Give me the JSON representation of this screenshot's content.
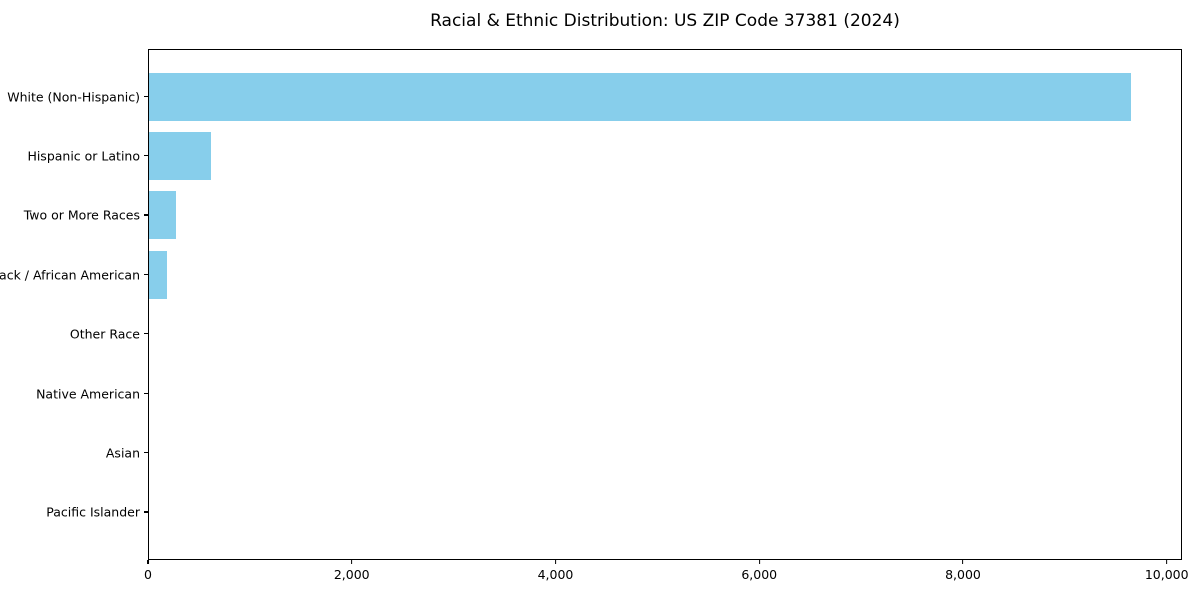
{
  "chart_data": {
    "type": "bar",
    "orientation": "horizontal",
    "title": "Racial & Ethnic Distribution: US ZIP Code 37381 (2024)",
    "categories": [
      "White (Non-Hispanic)",
      "Hispanic or Latino",
      "Two or More Races",
      "Black / African American",
      "Other Race",
      "Native American",
      "Asian",
      "Pacific Islander"
    ],
    "values": [
      9660,
      610,
      270,
      180,
      0,
      0,
      0,
      0
    ],
    "xlabel": "",
    "ylabel": "",
    "xlim": [
      0,
      10150
    ],
    "x_ticks": [
      0,
      2000,
      4000,
      6000,
      8000,
      10000
    ],
    "x_tick_labels": [
      "0",
      "2,000",
      "4,000",
      "6,000",
      "8,000",
      "10,000"
    ],
    "bar_color": "#87CEEB",
    "axis_color": "#000000",
    "background_color": "#ffffff",
    "grid": false,
    "legend": "none"
  }
}
